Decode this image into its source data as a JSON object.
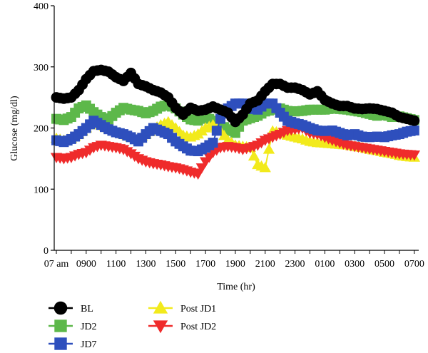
{
  "chart_data": {
    "type": "line",
    "xlabel": "Time (hr)",
    "ylabel": "Glucose (mg/dl)",
    "ylim": [
      0,
      400
    ],
    "yticks": [
      0,
      100,
      200,
      300,
      400
    ],
    "x_range_hours": [
      0,
      24.2
    ],
    "xtick_labels": [
      "07 am",
      "0900",
      "1100",
      "1300",
      "1500",
      "1700",
      "1900",
      "2100",
      "2300",
      "0100",
      "0300",
      "0500",
      "0700"
    ],
    "grid": false,
    "legend_position": "bottom",
    "series": [
      {
        "name": "BL",
        "color": "#000000",
        "marker": "circle",
        "keypoints": [
          [
            0,
            250
          ],
          [
            0.5,
            248
          ],
          [
            1,
            250
          ],
          [
            1.5,
            262
          ],
          [
            2,
            280
          ],
          [
            2.5,
            293
          ],
          [
            3,
            295
          ],
          [
            3.5,
            292
          ],
          [
            4,
            283
          ],
          [
            4.5,
            277
          ],
          [
            5,
            290
          ],
          [
            5.5,
            272
          ],
          [
            6,
            268
          ],
          [
            6.5,
            262
          ],
          [
            7,
            258
          ],
          [
            7.5,
            250
          ],
          [
            8,
            233
          ],
          [
            8.5,
            222
          ],
          [
            9,
            233
          ],
          [
            9.5,
            228
          ],
          [
            10,
            230
          ],
          [
            10.5,
            235
          ],
          [
            11,
            230
          ],
          [
            11.5,
            225
          ],
          [
            12,
            210
          ],
          [
            12.5,
            222
          ],
          [
            13,
            240
          ],
          [
            13.5,
            245
          ],
          [
            14,
            260
          ],
          [
            14.5,
            272
          ],
          [
            15,
            272
          ],
          [
            15.5,
            266
          ],
          [
            16,
            266
          ],
          [
            16.5,
            262
          ],
          [
            17,
            255
          ],
          [
            17.5,
            260
          ],
          [
            18,
            246
          ],
          [
            18.5,
            240
          ],
          [
            19,
            236
          ],
          [
            19.5,
            236
          ],
          [
            20,
            232
          ],
          [
            20.5,
            231
          ],
          [
            21,
            232
          ],
          [
            21.5,
            231
          ],
          [
            22,
            228
          ],
          [
            22.5,
            225
          ],
          [
            23,
            218
          ],
          [
            23.5,
            215
          ],
          [
            24,
            212
          ]
        ]
      },
      {
        "name": "JD2",
        "color": "#5db84a",
        "marker": "square",
        "keypoints": [
          [
            0,
            215
          ],
          [
            0.5,
            213
          ],
          [
            1,
            218
          ],
          [
            1.5,
            232
          ],
          [
            2,
            237
          ],
          [
            2.5,
            226
          ],
          [
            3,
            218
          ],
          [
            3.5,
            214
          ],
          [
            4,
            225
          ],
          [
            4.5,
            233
          ],
          [
            5,
            230
          ],
          [
            5.5,
            228
          ],
          [
            6,
            224
          ],
          [
            6.5,
            228
          ],
          [
            7,
            235
          ],
          [
            7.5,
            238
          ],
          [
            8,
            232
          ],
          [
            8.5,
            222
          ],
          [
            9,
            214
          ],
          [
            9.5,
            212
          ],
          [
            10,
            218
          ],
          [
            10.5,
            212
          ],
          [
            11,
            205
          ],
          [
            11.5,
            198
          ],
          [
            12,
            192
          ],
          [
            12.5,
            212
          ],
          [
            13,
            216
          ],
          [
            13.5,
            220
          ],
          [
            14,
            227
          ],
          [
            14.5,
            230
          ],
          [
            15,
            232
          ],
          [
            15.5,
            228
          ],
          [
            16,
            227
          ],
          [
            16.5,
            228
          ],
          [
            17,
            230
          ],
          [
            17.5,
            230
          ],
          [
            18,
            230
          ],
          [
            18.5,
            232
          ],
          [
            19,
            231
          ],
          [
            19.5,
            230
          ],
          [
            20,
            228
          ],
          [
            20.5,
            226
          ],
          [
            21,
            223
          ],
          [
            21.5,
            220
          ],
          [
            22,
            222
          ],
          [
            22.5,
            218
          ],
          [
            23,
            219
          ],
          [
            23.5,
            216
          ],
          [
            24,
            213
          ]
        ]
      },
      {
        "name": "JD7",
        "color": "#2e4fbd",
        "marker": "square",
        "keypoints": [
          [
            0,
            180
          ],
          [
            0.5,
            177
          ],
          [
            1,
            182
          ],
          [
            1.5,
            190
          ],
          [
            2,
            200
          ],
          [
            2.5,
            212
          ],
          [
            3,
            205
          ],
          [
            3.5,
            198
          ],
          [
            4,
            193
          ],
          [
            4.5,
            190
          ],
          [
            5,
            185
          ],
          [
            5.5,
            178
          ],
          [
            6,
            190
          ],
          [
            6.5,
            200
          ],
          [
            7,
            195
          ],
          [
            7.5,
            190
          ],
          [
            8,
            178
          ],
          [
            8.5,
            170
          ],
          [
            9,
            163
          ],
          [
            9.5,
            162
          ],
          [
            10,
            168
          ],
          [
            10.5,
            176
          ],
          [
            11,
            215
          ],
          [
            11.5,
            232
          ],
          [
            12,
            240
          ],
          [
            12.5,
            240
          ],
          [
            13,
            232
          ],
          [
            13.5,
            230
          ],
          [
            14,
            240
          ],
          [
            14.5,
            240
          ],
          [
            15,
            225
          ],
          [
            15.5,
            212
          ],
          [
            16,
            208
          ],
          [
            16.5,
            205
          ],
          [
            17,
            200
          ],
          [
            17.5,
            196
          ],
          [
            18,
            195
          ],
          [
            18.5,
            196
          ],
          [
            19,
            192
          ],
          [
            19.5,
            188
          ],
          [
            20,
            190
          ],
          [
            20.5,
            186
          ],
          [
            21,
            185
          ],
          [
            21.5,
            186
          ],
          [
            22,
            185
          ],
          [
            22.5,
            188
          ],
          [
            23,
            190
          ],
          [
            23.5,
            194
          ],
          [
            24,
            196
          ]
        ]
      },
      {
        "name": "Post JD1",
        "color": "#f2ea1c",
        "marker": "triangle-up",
        "keypoints": [
          [
            0,
            183
          ],
          [
            0.5,
            180
          ],
          [
            1,
            183
          ],
          [
            1.5,
            190
          ],
          [
            2,
            200
          ],
          [
            2.5,
            210
          ],
          [
            3,
            205
          ],
          [
            3.5,
            200
          ],
          [
            4,
            195
          ],
          [
            4.5,
            190
          ],
          [
            5,
            185
          ],
          [
            5.5,
            183
          ],
          [
            6,
            190
          ],
          [
            6.5,
            198
          ],
          [
            7,
            205
          ],
          [
            7.5,
            210
          ],
          [
            8,
            200
          ],
          [
            8.5,
            188
          ],
          [
            9,
            185
          ],
          [
            9.5,
            190
          ],
          [
            10,
            200
          ],
          [
            10.5,
            205
          ],
          [
            11,
            195
          ],
          [
            11.5,
            180
          ],
          [
            12,
            172
          ],
          [
            12.5,
            170
          ],
          [
            13,
            168
          ],
          [
            13.5,
            140
          ],
          [
            14,
            135
          ],
          [
            14.5,
            195
          ],
          [
            15,
            192
          ],
          [
            15.5,
            188
          ],
          [
            16,
            185
          ],
          [
            16.5,
            182
          ],
          [
            17,
            178
          ],
          [
            17.5,
            176
          ],
          [
            18,
            175
          ],
          [
            18.5,
            174
          ],
          [
            19,
            173
          ],
          [
            19.5,
            172
          ],
          [
            20,
            170
          ],
          [
            20.5,
            168
          ],
          [
            21,
            165
          ],
          [
            21.5,
            163
          ],
          [
            22,
            160
          ],
          [
            22.5,
            158
          ],
          [
            23,
            155
          ],
          [
            23.5,
            153
          ],
          [
            24,
            152
          ]
        ]
      },
      {
        "name": "Post JD2",
        "color": "#ef2b2b",
        "marker": "triangle-down",
        "keypoints": [
          [
            0,
            152
          ],
          [
            0.5,
            150
          ],
          [
            1,
            152
          ],
          [
            1.5,
            157
          ],
          [
            2,
            160
          ],
          [
            2.5,
            168
          ],
          [
            3,
            172
          ],
          [
            3.5,
            170
          ],
          [
            4,
            168
          ],
          [
            4.5,
            165
          ],
          [
            5,
            158
          ],
          [
            5.5,
            150
          ],
          [
            6,
            145
          ],
          [
            6.5,
            142
          ],
          [
            7,
            140
          ],
          [
            7.5,
            137
          ],
          [
            8,
            135
          ],
          [
            8.5,
            132
          ],
          [
            9,
            128
          ],
          [
            9.5,
            125
          ],
          [
            10,
            145
          ],
          [
            10.5,
            160
          ],
          [
            11,
            168
          ],
          [
            11.5,
            170
          ],
          [
            12,
            168
          ],
          [
            12.5,
            165
          ],
          [
            13,
            168
          ],
          [
            13.5,
            172
          ],
          [
            14,
            180
          ],
          [
            14.5,
            185
          ],
          [
            15,
            190
          ],
          [
            15.5,
            196
          ],
          [
            16,
            198
          ],
          [
            16.5,
            200
          ],
          [
            17,
            192
          ],
          [
            17.5,
            190
          ],
          [
            18,
            185
          ],
          [
            18.5,
            180
          ],
          [
            19,
            176
          ],
          [
            19.5,
            172
          ],
          [
            20,
            170
          ],
          [
            20.5,
            168
          ],
          [
            21,
            166
          ],
          [
            21.5,
            164
          ],
          [
            22,
            162
          ],
          [
            22.5,
            160
          ],
          [
            23,
            158
          ],
          [
            23.5,
            157
          ],
          [
            24,
            156
          ]
        ]
      }
    ]
  }
}
